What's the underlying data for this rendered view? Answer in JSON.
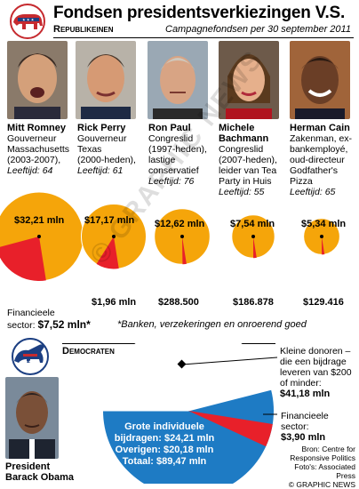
{
  "title": "Fondsen presidentsverkiezingen V.S.",
  "republicans_label": "Republikeinen",
  "subtitle": "Campagnefondsen per 30 september 2011",
  "candidates": [
    {
      "name": "Mitt Romney",
      "desc": [
        "Gouverneur",
        "Massachusetts",
        "(2003-2007),"
      ],
      "age": "Leeftijd: 64",
      "total": "$32,21 mln",
      "financial": ""
    },
    {
      "name": "Rick Perry",
      "desc": [
        "Gouverneur",
        "Texas",
        "(2000-heden),"
      ],
      "age": "Leeftijd: 61",
      "total": "$17,17 mln",
      "financial": "$1,96 mln"
    },
    {
      "name": "Ron Paul",
      "desc": [
        "Congreslid",
        "(1997-heden),",
        "lastige",
        "conservatief"
      ],
      "age": "Leeftijd: 76",
      "total": "$12,62 mln",
      "financial": "$288.500"
    },
    {
      "name": "Michele",
      "name2": "Bachmann",
      "desc": [
        "Congreslid",
        "(2007-heden),",
        "leider van Tea",
        "Party in Huis"
      ],
      "age": "Leeftijd: 55",
      "total": "$7,54 mln",
      "financial": "$186.878"
    },
    {
      "name": "Herman Cain",
      "desc": [
        "Zakenman, ex-",
        "bankemployé,",
        "oud-directeur",
        "Godfather's",
        "Pizza"
      ],
      "age": "Leeftijd: 65",
      "total": "$5,34 mln",
      "financial": "$129.416"
    }
  ],
  "sector_label_1": "Financieele",
  "sector_label_2": "sector:",
  "sector_value": "$7,52 mln*",
  "footnote": "*Banken, verzekeringen en onroerend goed",
  "democrats_label": "Democraten",
  "small_donors": [
    "Kleine donoren –",
    "die een bijdrage",
    "leveren van $200",
    "of minder:"
  ],
  "small_donors_value": "$41,18 mln",
  "fin_dem": [
    "Financieele",
    "sector:"
  ],
  "fin_dem_value": "$3,90 mln",
  "big_donors": [
    "Grote individuele",
    "bijdragen: $24,21 mln",
    "Overigen: $20,18 mln",
    "Totaal: $89,47 mln"
  ],
  "obama": [
    "President",
    "Barack Obama"
  ],
  "source": [
    "Bron: Centre for",
    "Responsive Politics",
    "Foto's: Associated Press",
    "© GRAPHIC NEWS"
  ],
  "watermark": "© GRAPHIC NEWS",
  "colors": {
    "orange": "#f5a50a",
    "red": "#e8202a",
    "blue": "#1e7bc4",
    "navy": "#1c3f82"
  },
  "chart_data": [
    {
      "type": "pie",
      "title": "",
      "series": [
        {
          "name": "Mitt Romney",
          "values": [
            32.21,
            7.52
          ]
        },
        {
          "name": "Rick Perry",
          "values": [
            17.17,
            1.96
          ]
        },
        {
          "name": "Ron Paul",
          "values": [
            12.62,
            0.2885
          ]
        },
        {
          "name": "Michele Bachmann",
          "values": [
            7.54,
            0.186878
          ]
        },
        {
          "name": "Herman Cain",
          "values": [
            5.34,
            0.129416
          ]
        }
      ],
      "categories": [
        "Totaal",
        "Financieele sector"
      ],
      "unit": "$ mln"
    },
    {
      "type": "pie",
      "title": "",
      "categories": [
        "Kleine donoren",
        "Financieele sector",
        "Grote individuele bijdragen + Overigen"
      ],
      "values": [
        41.18,
        3.9,
        44.39
      ],
      "total": 89.47,
      "unit": "$ mln"
    }
  ]
}
